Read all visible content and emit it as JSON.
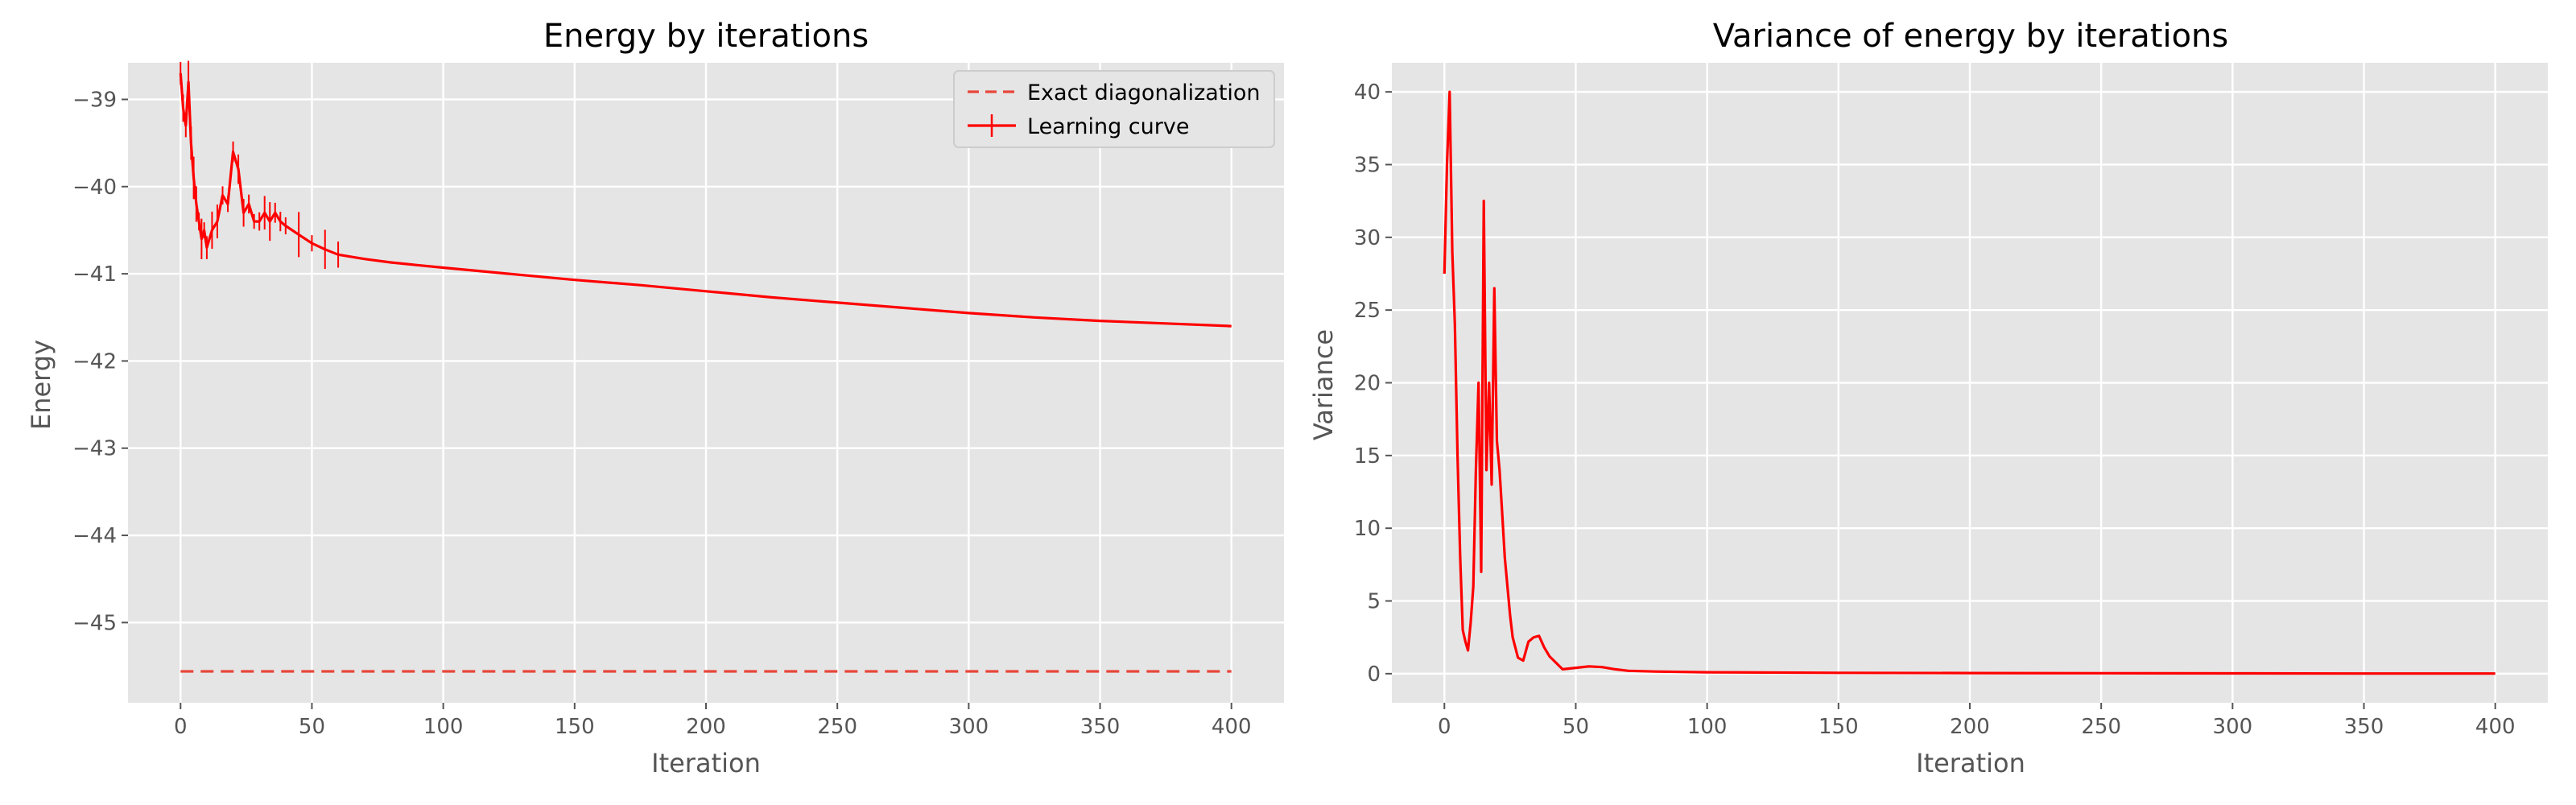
{
  "chart_data": [
    {
      "type": "line",
      "title": "Energy by iterations",
      "xlabel": "Iteration",
      "ylabel": "Energy",
      "xlim": [
        -20,
        420
      ],
      "ylim": [
        -45.92,
        -38.58
      ],
      "xticks": [
        0,
        50,
        100,
        150,
        200,
        250,
        300,
        350,
        400
      ],
      "yticks": [
        -39,
        -40,
        -41,
        -42,
        -43,
        -44,
        -45
      ],
      "ytick_labels": [
        "−39",
        "−40",
        "−41",
        "−42",
        "−43",
        "−44",
        "−45"
      ],
      "grid": true,
      "legend": "top-right",
      "series": [
        {
          "name": "Exact diagonalization",
          "style": "dashed",
          "color": "#e8463a",
          "x": [
            0,
            400
          ],
          "y": [
            -45.56,
            -45.56
          ]
        },
        {
          "name": "Learning curve",
          "style": "solid-with-errorbars",
          "color": "#ff0000",
          "x": [
            0,
            1,
            2,
            3,
            4,
            5,
            6,
            7,
            8,
            9,
            10,
            12,
            14,
            16,
            18,
            20,
            22,
            24,
            26,
            28,
            30,
            32,
            34,
            36,
            38,
            40,
            45,
            50,
            55,
            60,
            70,
            80,
            90,
            100,
            125,
            150,
            175,
            200,
            225,
            250,
            275,
            300,
            325,
            350,
            375,
            400
          ],
          "y": [
            -38.7,
            -39.1,
            -39.3,
            -38.8,
            -39.5,
            -39.9,
            -40.2,
            -40.4,
            -40.6,
            -40.5,
            -40.7,
            -40.5,
            -40.4,
            -40.1,
            -40.2,
            -39.6,
            -39.8,
            -40.3,
            -40.2,
            -40.4,
            -40.4,
            -40.3,
            -40.4,
            -40.3,
            -40.4,
            -40.45,
            -40.55,
            -40.65,
            -40.72,
            -40.78,
            -40.83,
            -40.87,
            -40.9,
            -40.93,
            -41.0,
            -41.07,
            -41.13,
            -41.2,
            -41.27,
            -41.33,
            -41.39,
            -41.45,
            -41.5,
            -41.54,
            -41.57,
            -41.6
          ]
        }
      ]
    },
    {
      "type": "line",
      "title": "Variance of energy by iterations",
      "xlabel": "Iteration",
      "ylabel": "Variance",
      "xlim": [
        -20,
        420
      ],
      "ylim": [
        -2,
        42
      ],
      "xticks": [
        0,
        50,
        100,
        150,
        200,
        250,
        300,
        350,
        400
      ],
      "yticks": [
        0,
        5,
        10,
        15,
        20,
        25,
        30,
        35,
        40
      ],
      "ytick_labels": [
        "0",
        "5",
        "10",
        "15",
        "20",
        "25",
        "30",
        "35",
        "40"
      ],
      "grid": true,
      "series": [
        {
          "color": "#ff0000",
          "x": [
            0,
            1,
            2,
            3,
            4,
            5,
            6,
            7,
            8,
            9,
            10,
            11,
            12,
            13,
            14,
            15,
            16,
            17,
            18,
            19,
            20,
            21,
            22,
            23,
            24,
            25,
            26,
            28,
            30,
            32,
            34,
            36,
            38,
            40,
            45,
            50,
            55,
            60,
            65,
            70,
            80,
            100,
            150,
            200,
            250,
            300,
            350,
            400
          ],
          "y": [
            27.5,
            35,
            40,
            29,
            24,
            15,
            8,
            3,
            2.2,
            1.6,
            3.5,
            6,
            14,
            20,
            7,
            32.5,
            14,
            20,
            13,
            26.5,
            16,
            14,
            11,
            8,
            6,
            4,
            2.5,
            1.1,
            0.9,
            2.2,
            2.5,
            2.6,
            1.8,
            1.2,
            0.3,
            0.4,
            0.5,
            0.45,
            0.3,
            0.2,
            0.15,
            0.1,
            0.06,
            0.04,
            0.03,
            0.02,
            0.01,
            0.01
          ]
        }
      ]
    }
  ]
}
